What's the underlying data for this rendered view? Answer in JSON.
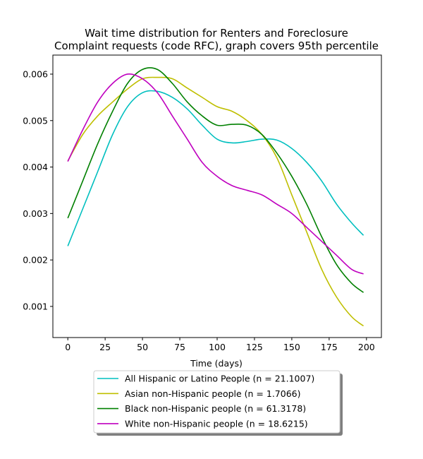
{
  "chart_data": {
    "type": "line",
    "title_lines": [
      "Wait time distribution  for Renters and Foreclosure",
      "Complaint  requests (code RFC), graph covers 95th percentile"
    ],
    "xlabel": "Time (days)",
    "ylabel": "",
    "xlim": [
      -10,
      210
    ],
    "ylim": [
      0.00033,
      0.00641
    ],
    "x_ticks": [
      0,
      25,
      50,
      75,
      100,
      125,
      150,
      175,
      200
    ],
    "x_tick_labels": [
      "0",
      "25",
      "50",
      "75",
      "100",
      "125",
      "150",
      "175",
      "200"
    ],
    "y_ticks": [
      0.001,
      0.002,
      0.003,
      0.004,
      0.005,
      0.006
    ],
    "y_tick_labels": [
      "0.001",
      "0.002",
      "0.003",
      "0.004",
      "0.005",
      "0.006"
    ],
    "grid": false,
    "legend_position": "below the plot, centered",
    "x": [
      0,
      10,
      20,
      30,
      40,
      50,
      60,
      70,
      80,
      90,
      100,
      110,
      120,
      130,
      140,
      150,
      160,
      170,
      180,
      190,
      198
    ],
    "series": [
      {
        "name": "All Hispanic or Latino People (n = 21.1007)",
        "color": "#00bfbf",
        "values": [
          0.0023,
          0.0031,
          0.0039,
          0.0047,
          0.0053,
          0.0056,
          0.00563,
          0.0055,
          0.00525,
          0.0049,
          0.0046,
          0.00452,
          0.00455,
          0.0046,
          0.00458,
          0.0044,
          0.0041,
          0.0037,
          0.0032,
          0.0028,
          0.00253
        ]
      },
      {
        "name": "Asian non-Hispanic people (n = 1.7066)",
        "color": "#bfbf00",
        "values": [
          0.00413,
          0.0047,
          0.0051,
          0.0054,
          0.00568,
          0.0059,
          0.00593,
          0.0059,
          0.0057,
          0.0055,
          0.0053,
          0.0052,
          0.005,
          0.0047,
          0.0042,
          0.0034,
          0.0026,
          0.0018,
          0.0012,
          0.00078,
          0.00058
        ]
      },
      {
        "name": "Black non-Hispanic people (n = 61.3178)",
        "color": "#008000",
        "values": [
          0.0029,
          0.0037,
          0.0045,
          0.0052,
          0.0058,
          0.0061,
          0.0061,
          0.0058,
          0.0054,
          0.0051,
          0.0049,
          0.00492,
          0.0049,
          0.0047,
          0.0043,
          0.0038,
          0.0032,
          0.0025,
          0.0019,
          0.0015,
          0.0013
        ]
      },
      {
        "name": "White non-Hispanic people (n = 18.6215)",
        "color": "#bf00bf",
        "values": [
          0.00412,
          0.0048,
          0.0054,
          0.0058,
          0.006,
          0.0059,
          0.0056,
          0.0051,
          0.0046,
          0.0041,
          0.0038,
          0.0036,
          0.0035,
          0.0034,
          0.0032,
          0.003,
          0.0027,
          0.0024,
          0.0021,
          0.0018,
          0.0017
        ]
      }
    ]
  }
}
